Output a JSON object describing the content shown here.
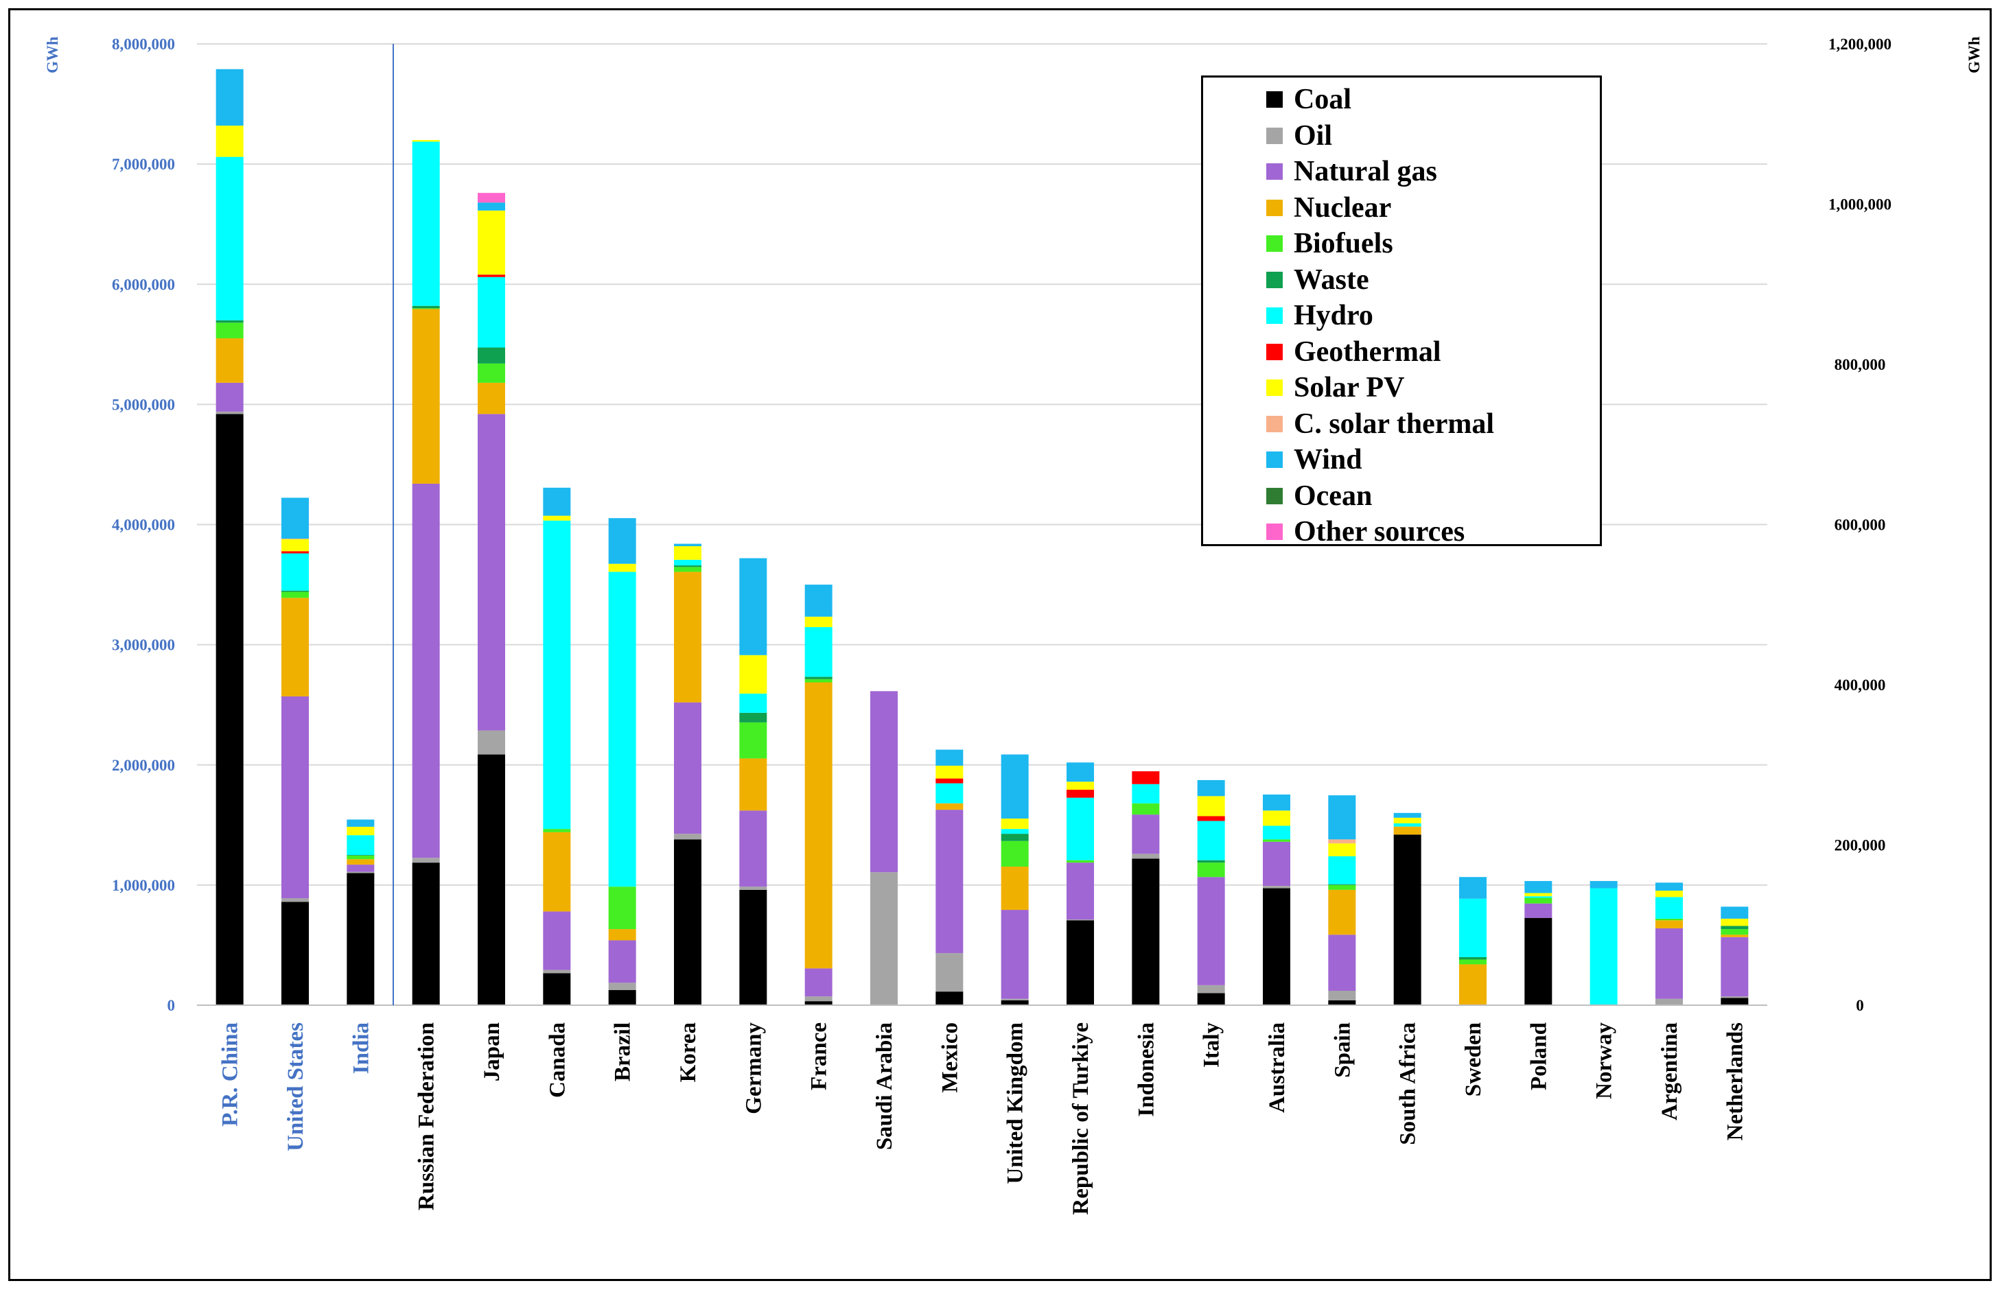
{
  "chart_data": {
    "type": "bar",
    "stacked": true,
    "left_axis": {
      "unit": "GWh",
      "range": [
        0,
        8000000
      ],
      "ticks": [
        "0",
        "1,000,000",
        "2,000,000",
        "3,000,000",
        "4,000,000",
        "5,000,000",
        "6,000,000",
        "7,000,000",
        "8,000,000"
      ]
    },
    "right_axis": {
      "unit": "GWh",
      "range": [
        0,
        1200000
      ],
      "ticks": [
        "0",
        "200,000",
        "400,000",
        "600,000",
        "800,000",
        "1,000,000",
        "1,200,000"
      ]
    },
    "legend_position": "top-right",
    "categories": [
      "P.R. China",
      "United States",
      "India",
      "Russian Federation",
      "Japan",
      "Canada",
      "Brazil",
      "Korea",
      "Germany",
      "France",
      "Saudi Arabia",
      "Mexico",
      "United Kingdom",
      "Republic of Turkiye",
      "Indonesia",
      "Italy",
      "Australia",
      "Spain",
      "South Africa",
      "Sweden",
      "Poland",
      "Norway",
      "Argentina",
      "Netherlands"
    ],
    "category_axis": [
      "left",
      "left",
      "left",
      "right",
      "right",
      "right",
      "right",
      "right",
      "right",
      "right",
      "right",
      "right",
      "right",
      "right",
      "right",
      "right",
      "right",
      "right",
      "right",
      "right",
      "right",
      "right",
      "right",
      "right"
    ],
    "series": [
      {
        "name": "Coal",
        "color": "#000000",
        "values": [
          4920000,
          860000,
          1100000,
          178000,
          313000,
          40000,
          19000,
          207000,
          144000,
          5000,
          0,
          17000,
          6000,
          106000,
          183000,
          15000,
          146000,
          6000,
          213000,
          0,
          109000,
          0,
          0,
          9000
        ]
      },
      {
        "name": "Oil",
        "color": "#A5A5A5",
        "values": [
          20000,
          30000,
          10000,
          6000,
          30000,
          4000,
          9000,
          7000,
          4000,
          6000,
          166000,
          48000,
          2000,
          1000,
          6000,
          10000,
          3000,
          12000,
          0,
          0,
          0,
          0,
          8000,
          2000
        ]
      },
      {
        "name": "Natural gas",
        "color": "#A066D3",
        "values": [
          240000,
          1680000,
          60000,
          467000,
          395000,
          73000,
          53000,
          164000,
          95000,
          35000,
          226000,
          179000,
          111000,
          71000,
          49000,
          135000,
          55000,
          70000,
          0,
          0,
          18000,
          0,
          88000,
          74000
        ]
      },
      {
        "name": "Nuclear",
        "color": "#F0B000",
        "values": [
          370000,
          820000,
          45000,
          218000,
          39000,
          99000,
          14000,
          163000,
          65000,
          357000,
          0,
          8000,
          54000,
          0,
          0,
          0,
          0,
          56000,
          10000,
          51000,
          0,
          0,
          10000,
          3000
        ]
      },
      {
        "name": "Biofuels",
        "color": "#44EE22",
        "values": [
          130000,
          50000,
          30000,
          1000,
          24000,
          4000,
          53000,
          6000,
          45000,
          4000,
          0,
          0,
          32000,
          3000,
          14000,
          18000,
          3000,
          6000,
          0,
          6000,
          7000,
          0,
          2000,
          7000
        ]
      },
      {
        "name": "Waste",
        "color": "#0FA050",
        "values": [
          20000,
          10000,
          5000,
          3000,
          20000,
          0,
          0,
          2000,
          12000,
          3000,
          0,
          0,
          9000,
          0,
          0,
          3000,
          0,
          1000,
          0,
          3000,
          0,
          0,
          0,
          4000
        ]
      },
      {
        "name": "Hydro",
        "color": "#00FFFF",
        "values": [
          1360000,
          310000,
          165000,
          205000,
          88000,
          385000,
          393000,
          7000,
          24000,
          62000,
          0,
          25000,
          6000,
          78000,
          24000,
          49000,
          17000,
          35000,
          4000,
          73000,
          2000,
          146000,
          27000,
          0
        ]
      },
      {
        "name": "Geothermal",
        "color": "#FF0000",
        "values": [
          0,
          18000,
          0,
          0,
          3000,
          0,
          0,
          0,
          0,
          0,
          0,
          6000,
          0,
          10000,
          16000,
          6000,
          0,
          0,
          0,
          0,
          0,
          0,
          0,
          0
        ]
      },
      {
        "name": "Solar PV",
        "color": "#FFFF00",
        "values": [
          260000,
          100000,
          70000,
          2000,
          80000,
          6000,
          10000,
          17000,
          48000,
          13000,
          0,
          16000,
          13000,
          10000,
          0,
          25000,
          19000,
          16000,
          7000,
          0,
          4000,
          0,
          8000,
          9000
        ]
      },
      {
        "name": "C. solar thermal",
        "color": "#F8B08A",
        "values": [
          0,
          5000,
          0,
          0,
          0,
          0,
          0,
          0,
          0,
          0,
          0,
          0,
          0,
          0,
          0,
          0,
          0,
          5000,
          0,
          0,
          0,
          0,
          0,
          0
        ]
      },
      {
        "name": "Wind",
        "color": "#1CB8F0",
        "values": [
          470000,
          340000,
          60000,
          0,
          10000,
          35000,
          57000,
          3000,
          121000,
          40000,
          0,
          20000,
          80000,
          24000,
          0,
          20000,
          20000,
          55000,
          6000,
          27000,
          15000,
          9000,
          10000,
          15000
        ]
      },
      {
        "name": "Ocean",
        "color": "#2E7D32",
        "values": [
          0,
          0,
          0,
          0,
          0,
          0,
          0,
          0,
          0,
          0,
          0,
          0,
          0,
          0,
          0,
          0,
          0,
          0,
          0,
          0,
          0,
          0,
          0,
          0
        ]
      },
      {
        "name": "Other sources",
        "color": "#FF66CC",
        "values": [
          0,
          0,
          0,
          0,
          12000,
          0,
          0,
          0,
          0,
          0,
          0,
          0,
          0,
          0,
          0,
          0,
          0,
          0,
          0,
          0,
          0,
          0,
          0,
          0
        ]
      }
    ]
  }
}
